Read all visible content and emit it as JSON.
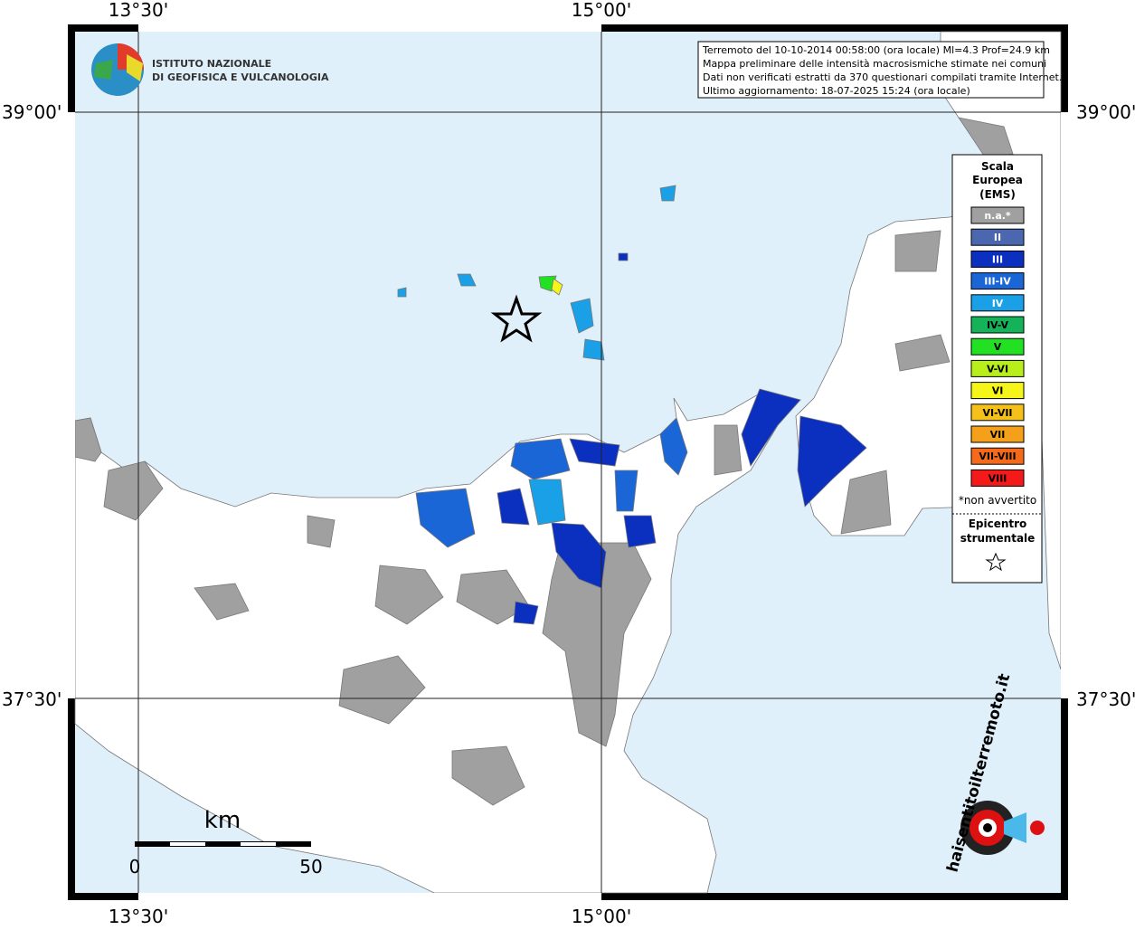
{
  "graticule": {
    "top": [
      "13°30'",
      "15°00'"
    ],
    "bottom": [
      "13°30'",
      "15°00'"
    ],
    "left": [
      "39°00'",
      "37°30'"
    ],
    "right": [
      "39°00'",
      "37°30'"
    ]
  },
  "info": [
    "Terremoto del 10-10-2014 00:58:00 (ora locale) Ml=4.3 Prof=24.9 km",
    "Mappa preliminare delle intensità macrosismiche stimate nei comuni",
    "Dati non verificati estratti da 370 questionari compilati tramite Internet.",
    "Ultimo aggiornamento: 18-07-2025 15:24 (ora locale)"
  ],
  "logo": [
    "ISTITUTO NAZIONALE",
    "DI GEOFISICA E VULCANOLOGIA"
  ],
  "legend": {
    "title": [
      "Scala",
      "Europea",
      "(EMS)"
    ],
    "items": [
      {
        "label": "n.a.*",
        "color": "#a0a0a0"
      },
      {
        "label": "II",
        "color": "#4a67b0"
      },
      {
        "label": "III",
        "color": "#0b2fbf"
      },
      {
        "label": "III-IV",
        "color": "#1a66d6"
      },
      {
        "label": "IV",
        "color": "#19a0e6"
      },
      {
        "label": "IV-V",
        "color": "#14b35a"
      },
      {
        "label": "V",
        "color": "#22e022"
      },
      {
        "label": "V-VI",
        "color": "#b8ee1a"
      },
      {
        "label": "VI",
        "color": "#f5f51a"
      },
      {
        "label": "VI-VII",
        "color": "#f5c01a"
      },
      {
        "label": "VII",
        "color": "#f5a01a"
      },
      {
        "label": "VII-VIII",
        "color": "#f56a1a"
      },
      {
        "label": "VIII",
        "color": "#f51a1a"
      }
    ],
    "note": "*non avvertito",
    "epicenter": [
      "Epicentro",
      "strumentale"
    ]
  },
  "scale": {
    "unit": "km",
    "start": "0",
    "end": "50"
  },
  "site": "haisentitoilterremoto.it"
}
